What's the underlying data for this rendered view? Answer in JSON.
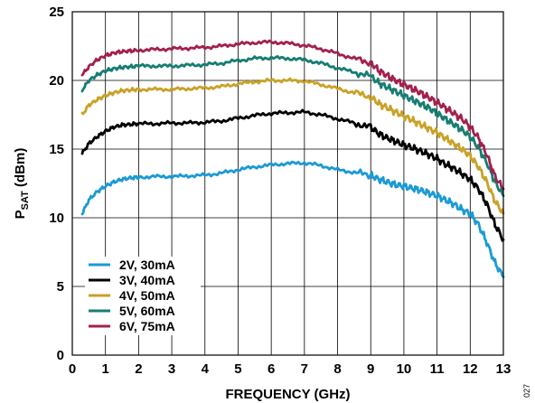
{
  "figure_id": "027",
  "chart_data": {
    "type": "line",
    "xlabel": "FREQUENCY (GHz)",
    "ylabel_main": "P",
    "ylabel_sub": "SAT",
    "ylabel_unit": " (dBm)",
    "xlim": [
      0,
      13
    ],
    "ylim": [
      0,
      25
    ],
    "xticks": [
      "0",
      "1",
      "2",
      "3",
      "4",
      "5",
      "6",
      "7",
      "8",
      "9",
      "10",
      "11",
      "12",
      "13"
    ],
    "yticks": [
      "0",
      "5",
      "10",
      "15",
      "20",
      "25"
    ],
    "grid": true,
    "legend_position": "bottom-left",
    "x": [
      0.3,
      0.5,
      0.75,
      1,
      1.25,
      1.5,
      1.75,
      2,
      2.5,
      3,
      3.5,
      4,
      4.5,
      5,
      5.5,
      6,
      6.5,
      7,
      7.5,
      8,
      8.5,
      9,
      9.25,
      9.5,
      9.75,
      10,
      10.25,
      10.5,
      10.75,
      11,
      11.25,
      11.5,
      11.75,
      12,
      12.25,
      12.5,
      12.75,
      13
    ],
    "series": [
      {
        "name": "2V, 30mA",
        "color": "#1a9ad6",
        "values": [
          10.3,
          11.3,
          11.9,
          12.3,
          12.6,
          12.8,
          12.9,
          12.95,
          13.0,
          13.0,
          13.05,
          13.1,
          13.25,
          13.5,
          13.7,
          13.85,
          13.95,
          14.0,
          13.8,
          13.5,
          13.3,
          13.1,
          12.8,
          12.6,
          12.4,
          12.3,
          12.15,
          12.0,
          11.8,
          11.6,
          11.3,
          11.0,
          10.6,
          10.3,
          9.5,
          8.2,
          6.7,
          5.7
        ]
      },
      {
        "name": "3V, 40mA",
        "color": "#000000",
        "values": [
          14.7,
          15.4,
          15.9,
          16.3,
          16.6,
          16.75,
          16.8,
          16.85,
          16.85,
          16.9,
          16.9,
          16.95,
          17.05,
          17.25,
          17.45,
          17.6,
          17.65,
          17.7,
          17.5,
          17.2,
          16.9,
          16.6,
          16.1,
          15.8,
          15.55,
          15.3,
          15.1,
          14.85,
          14.6,
          14.3,
          13.9,
          13.6,
          13.2,
          12.8,
          12.1,
          11.0,
          9.5,
          8.4
        ]
      },
      {
        "name": "4V, 50mA",
        "color": "#c9a227",
        "values": [
          17.5,
          18.2,
          18.6,
          18.9,
          19.1,
          19.25,
          19.3,
          19.35,
          19.35,
          19.35,
          19.4,
          19.45,
          19.55,
          19.75,
          19.9,
          20.0,
          20.0,
          19.95,
          19.7,
          19.4,
          19.1,
          18.8,
          18.3,
          18.0,
          17.7,
          17.4,
          17.1,
          16.8,
          16.5,
          16.2,
          15.8,
          15.4,
          15.0,
          14.5,
          13.7,
          12.6,
          11.2,
          10.3
        ]
      },
      {
        "name": "5V, 60mA",
        "color": "#177d72",
        "values": [
          19.3,
          20.0,
          20.4,
          20.7,
          20.85,
          20.95,
          21.0,
          21.05,
          21.05,
          21.05,
          21.1,
          21.15,
          21.25,
          21.45,
          21.6,
          21.65,
          21.6,
          21.5,
          21.25,
          20.9,
          20.6,
          20.3,
          19.8,
          19.5,
          19.2,
          18.9,
          18.6,
          18.3,
          18.0,
          17.6,
          17.2,
          16.8,
          16.4,
          15.9,
          15.1,
          14.0,
          12.6,
          11.6
        ]
      },
      {
        "name": "6V, 75mA",
        "color": "#a3204f",
        "values": [
          20.4,
          21.0,
          21.5,
          21.8,
          22.0,
          22.1,
          22.15,
          22.2,
          22.25,
          22.3,
          22.35,
          22.4,
          22.5,
          22.65,
          22.75,
          22.8,
          22.7,
          22.55,
          22.3,
          21.95,
          21.6,
          21.3,
          20.7,
          20.35,
          20.0,
          19.7,
          19.4,
          19.1,
          18.75,
          18.4,
          18.0,
          17.6,
          17.2,
          16.6,
          15.8,
          14.6,
          13.0,
          12.1
        ]
      }
    ]
  }
}
